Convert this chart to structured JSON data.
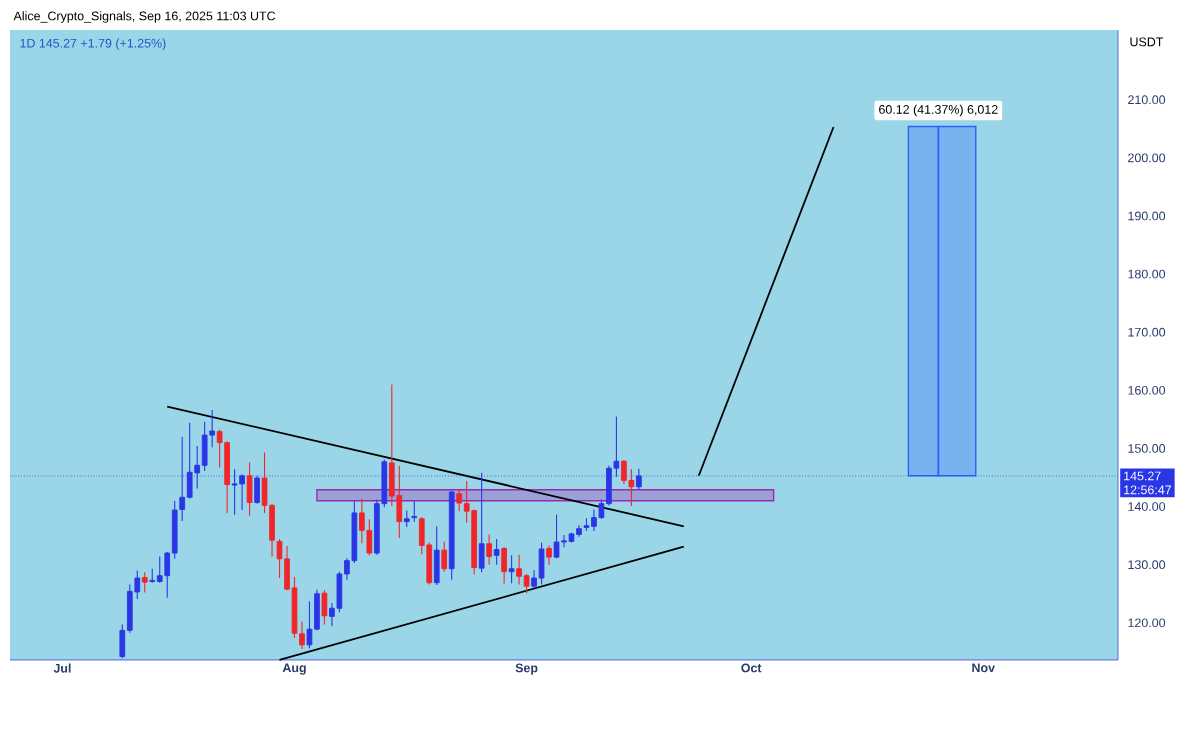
{
  "chart_data": {
    "type": "candlestick",
    "title": "Alice_Crypto_Signals, Sep 16, 2025 11:03 UTC",
    "subtitle": "1D  145.27  +1.79 (+1.25%)",
    "ylabel": "USDT",
    "x": [
      "2025-07-09",
      "2025-07-10",
      "2025-07-11",
      "2025-07-12",
      "2025-07-13",
      "2025-07-14",
      "2025-07-15",
      "2025-07-16",
      "2025-07-17",
      "2025-07-18",
      "2025-07-19",
      "2025-07-20",
      "2025-07-21",
      "2025-07-22",
      "2025-07-23",
      "2025-07-24",
      "2025-07-25",
      "2025-07-26",
      "2025-07-27",
      "2025-07-28",
      "2025-07-29",
      "2025-07-30",
      "2025-07-31",
      "2025-08-01",
      "2025-08-02",
      "2025-08-03",
      "2025-08-04",
      "2025-08-05",
      "2025-08-06",
      "2025-08-07",
      "2025-08-08",
      "2025-08-09",
      "2025-08-10",
      "2025-08-11",
      "2025-08-12",
      "2025-08-13",
      "2025-08-14",
      "2025-08-15",
      "2025-08-16",
      "2025-08-17",
      "2025-08-18",
      "2025-08-19",
      "2025-08-20",
      "2025-08-21",
      "2025-08-22",
      "2025-08-23",
      "2025-08-24",
      "2025-08-25",
      "2025-08-26",
      "2025-08-27",
      "2025-08-28",
      "2025-08-29",
      "2025-08-30",
      "2025-08-31",
      "2025-09-01",
      "2025-09-02",
      "2025-09-03",
      "2025-09-04",
      "2025-09-05",
      "2025-09-06",
      "2025-09-07",
      "2025-09-08",
      "2025-09-09",
      "2025-09-10",
      "2025-09-11",
      "2025-09-12",
      "2025-09-13",
      "2025-09-14",
      "2025-09-15",
      "2025-09-16"
    ],
    "ohlc": [
      [
        114.2,
        119.7,
        113.9,
        118.7
      ],
      [
        118.7,
        126.6,
        118.3,
        125.4
      ],
      [
        125.3,
        129.0,
        124.1,
        127.7
      ],
      [
        127.8,
        128.7,
        125.2,
        127.0
      ],
      [
        127.1,
        129.3,
        126.9,
        127.3
      ],
      [
        127.1,
        131.4,
        126.9,
        128.1
      ],
      [
        128.1,
        132.2,
        124.3,
        132.0
      ],
      [
        132.0,
        141.0,
        131.0,
        139.4
      ],
      [
        139.5,
        152.0,
        137.5,
        141.6
      ],
      [
        141.6,
        154.4,
        141.4,
        145.9
      ],
      [
        145.8,
        150.4,
        143.1,
        147.1
      ],
      [
        147.1,
        154.6,
        146.1,
        152.3
      ],
      [
        152.3,
        156.6,
        150.2,
        153.0
      ],
      [
        152.9,
        153.2,
        146.7,
        151.0
      ],
      [
        151.0,
        151.2,
        138.9,
        143.8
      ],
      [
        143.7,
        146.4,
        138.6,
        143.9
      ],
      [
        143.9,
        145.5,
        139.4,
        145.3
      ],
      [
        145.3,
        147.6,
        138.4,
        140.7
      ],
      [
        140.7,
        145.3,
        140.5,
        144.9
      ],
      [
        144.9,
        149.3,
        138.9,
        140.2
      ],
      [
        140.2,
        140.5,
        131.4,
        134.2
      ],
      [
        134.0,
        134.4,
        127.7,
        131.0
      ],
      [
        131.0,
        133.2,
        125.6,
        125.8
      ],
      [
        126.0,
        127.9,
        117.4,
        118.2
      ],
      [
        118.1,
        120.2,
        115.5,
        116.2
      ],
      [
        116.2,
        123.7,
        115.6,
        118.9
      ],
      [
        118.9,
        125.7,
        118.7,
        125.0
      ],
      [
        125.1,
        125.6,
        119.7,
        121.2
      ],
      [
        121.1,
        123.4,
        119.4,
        122.5
      ],
      [
        122.5,
        128.8,
        121.8,
        128.4
      ],
      [
        128.4,
        131.1,
        127.4,
        130.7
      ],
      [
        130.7,
        140.9,
        130.3,
        138.9
      ],
      [
        138.9,
        141.3,
        133.7,
        135.9
      ],
      [
        135.9,
        137.8,
        131.6,
        132.0
      ],
      [
        132.0,
        141.2,
        131.7,
        140.5
      ],
      [
        140.5,
        148.1,
        139.9,
        147.7
      ],
      [
        147.5,
        161.0,
        140.1,
        141.8
      ],
      [
        141.9,
        147.0,
        134.6,
        137.4
      ],
      [
        137.4,
        139.3,
        136.5,
        137.9
      ],
      [
        138.1,
        140.9,
        137.4,
        138.3
      ],
      [
        137.9,
        138.2,
        131.8,
        133.3
      ],
      [
        133.4,
        133.8,
        126.6,
        126.9
      ],
      [
        126.9,
        136.6,
        126.5,
        132.5
      ],
      [
        132.5,
        134.0,
        128.8,
        129.3
      ],
      [
        129.3,
        142.7,
        127.4,
        142.5
      ],
      [
        142.2,
        142.9,
        139.2,
        140.6
      ],
      [
        140.5,
        144.4,
        137.2,
        139.2
      ],
      [
        139.3,
        139.5,
        128.3,
        129.5
      ],
      [
        129.4,
        145.8,
        128.7,
        133.6
      ],
      [
        133.6,
        135.2,
        130.0,
        131.4
      ],
      [
        131.6,
        134.4,
        130.0,
        132.6
      ],
      [
        132.8,
        133.0,
        126.7,
        128.8
      ],
      [
        128.8,
        131.6,
        126.8,
        129.3
      ],
      [
        129.3,
        131.7,
        126.6,
        128.0
      ],
      [
        128.1,
        128.4,
        125.1,
        126.3
      ],
      [
        126.3,
        129.1,
        125.9,
        127.7
      ],
      [
        127.7,
        133.8,
        126.6,
        132.7
      ],
      [
        132.8,
        133.3,
        130.0,
        131.3
      ],
      [
        131.3,
        138.6,
        131.1,
        133.9
      ],
      [
        133.9,
        135.1,
        133.0,
        134.1
      ],
      [
        134.0,
        135.5,
        133.8,
        135.3
      ],
      [
        135.2,
        136.8,
        134.8,
        136.2
      ],
      [
        136.4,
        138.0,
        135.8,
        136.7
      ],
      [
        136.6,
        139.5,
        135.8,
        138.1
      ],
      [
        138.1,
        141.2,
        137.9,
        140.5
      ],
      [
        140.5,
        147.0,
        140.2,
        146.6
      ],
      [
        146.6,
        155.5,
        145.1,
        147.8
      ],
      [
        147.8,
        148.0,
        143.9,
        144.5
      ],
      [
        144.5,
        146.4,
        140.1,
        143.4
      ],
      [
        143.4,
        146.5,
        142.9,
        145.27
      ]
    ],
    "colors": [
      "#2a36e6",
      "#2a36e6",
      "#2a36e6",
      "#f0262a",
      "#2a36e6",
      "#2a36e6",
      "#2a36e6",
      "#2a36e6",
      "#2a36e6",
      "#2a36e6",
      "#2a36e6",
      "#2a36e6",
      "#2a36e6",
      "#f0262a",
      "#f0262a",
      "#2a36e6",
      "#2a36e6",
      "#f0262a",
      "#2a36e6",
      "#f0262a",
      "#f0262a",
      "#f0262a",
      "#f0262a",
      "#f0262a",
      "#f0262a",
      "#2a36e6",
      "#2a36e6",
      "#f0262a",
      "#2a36e6",
      "#2a36e6",
      "#2a36e6",
      "#2a36e6",
      "#f0262a",
      "#f0262a",
      "#2a36e6",
      "#2a36e6",
      "#f0262a",
      "#f0262a",
      "#2a36e6",
      "#2a36e6",
      "#f0262a",
      "#f0262a",
      "#2a36e6",
      "#f0262a",
      "#2a36e6",
      "#f0262a",
      "#f0262a",
      "#f0262a",
      "#2a36e6",
      "#f0262a",
      "#2a36e6",
      "#f0262a",
      "#2a36e6",
      "#f0262a",
      "#f0262a",
      "#2a36e6",
      "#2a36e6",
      "#f0262a",
      "#2a36e6",
      "#2a36e6",
      "#2a36e6",
      "#2a36e6",
      "#2a36e6",
      "#2a36e6",
      "#2a36e6",
      "#2a36e6",
      "#2a36e6",
      "#f0262a",
      "#f0262a",
      "#2a36e6"
    ],
    "series": [
      {
        "type": "area",
        "x": [
          "2025-08-04",
          "2025-10-04",
          "2025-10-04",
          "2025-08-04"
        ],
        "values": [
          141.0,
          141.0,
          142.9,
          142.9
        ],
        "color": "#9c27b0"
      },
      {
        "type": "area",
        "x": [
          "2025-10-22",
          "2025-10-31",
          "2025-10-31",
          "2025-10-22"
        ],
        "values": [
          145.3,
          145.3,
          205.4,
          205.4
        ],
        "color": "#2962ff"
      },
      {
        "type": "line",
        "x": [
          "2025-10-26",
          "2025-10-26"
        ],
        "values": [
          145.3,
          205.4
        ],
        "color": "#2962ff"
      },
      {
        "type": "line",
        "x": [
          "2025-07-15",
          "2025-09-22"
        ],
        "values": [
          157.2,
          136.6
        ],
        "color": "#000000"
      },
      {
        "type": "line",
        "x": [
          "2025-07-30",
          "2025-09-22"
        ],
        "values": [
          113.6,
          133.1
        ],
        "color": "#000000"
      },
      {
        "type": "line",
        "x": [
          "2025-09-24",
          "2025-10-12"
        ],
        "values": [
          145.3,
          205.3
        ],
        "color": "#000000"
      }
    ],
    "ref_lines": [
      {
        "axis": "y",
        "value": 145.27,
        "label": "145.27",
        "color": "#2a36e6",
        "line_style": "dotted"
      }
    ],
    "annotations": [
      {
        "text": "60.12 (41.37%) 6,012",
        "x": "2025-10-26",
        "y": 205.4
      },
      "12:56:47"
    ],
    "xlim": [
      "2025-06-24",
      "2025-11-19"
    ],
    "xticks": [
      {
        "value": "2025-07-01",
        "label": "Jul"
      },
      {
        "value": "2025-08-01",
        "label": "Aug"
      },
      {
        "value": "2025-09-01",
        "label": "Sep"
      },
      {
        "value": "2025-10-01",
        "label": "Oct"
      },
      {
        "value": "2025-11-01",
        "label": "Nov"
      }
    ],
    "ylim": [
      113.6,
      222
    ],
    "yticks": [
      {
        "value": 120,
        "label": "120.00"
      },
      {
        "value": 130,
        "label": "130.00"
      },
      {
        "value": 140,
        "label": "140.00"
      },
      {
        "value": 150,
        "label": "150.00"
      },
      {
        "value": 160,
        "label": "160.00"
      },
      {
        "value": 170,
        "label": "170.00"
      },
      {
        "value": 180,
        "label": "180.00"
      },
      {
        "value": 190,
        "label": "190.00"
      },
      {
        "value": 200,
        "label": "200.00"
      },
      {
        "value": 210,
        "label": "210.00"
      }
    ]
  }
}
